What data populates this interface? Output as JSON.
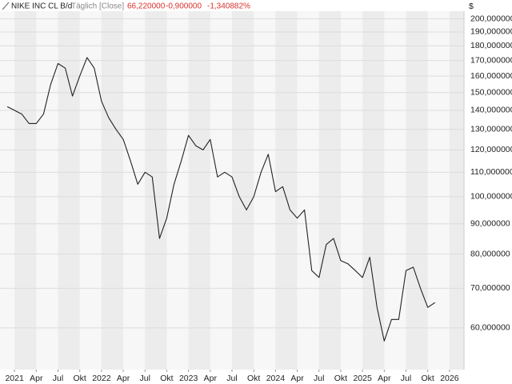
{
  "chart_data": {
    "type": "line",
    "title": "NIKE INC CL B/d",
    "subtitle": "Täglich [Close]",
    "annotations": [
      "66,220000",
      "-0,900000",
      "-1,340882%"
    ],
    "ylabel": "$",
    "log_scale": true,
    "grid": true,
    "xlim": [
      "2020-11",
      "2026-03"
    ],
    "ylim": [
      51,
      206
    ],
    "xticks": [
      {
        "value": "2021-01",
        "label": "2021"
      },
      {
        "value": "2021-04",
        "label": "Apr"
      },
      {
        "value": "2021-07",
        "label": "Jul"
      },
      {
        "value": "2021-10",
        "label": "Okt"
      },
      {
        "value": "2022-01",
        "label": "2022"
      },
      {
        "value": "2022-04",
        "label": "Apr"
      },
      {
        "value": "2022-07",
        "label": "Jul"
      },
      {
        "value": "2022-10",
        "label": "Okt"
      },
      {
        "value": "2023-01",
        "label": "2023"
      },
      {
        "value": "2023-04",
        "label": "Apr"
      },
      {
        "value": "2023-07",
        "label": "Jul"
      },
      {
        "value": "2023-10",
        "label": "Okt"
      },
      {
        "value": "2024-01",
        "label": "2024"
      },
      {
        "value": "2024-04",
        "label": "Apr"
      },
      {
        "value": "2024-07",
        "label": "Jul"
      },
      {
        "value": "2024-10",
        "label": "Okt"
      },
      {
        "value": "2025-01",
        "label": "2025"
      },
      {
        "value": "2025-04",
        "label": "Apr"
      },
      {
        "value": "2025-07",
        "label": "Jul"
      },
      {
        "value": "2025-10",
        "label": "Okt"
      },
      {
        "value": "2026-01",
        "label": "2026"
      }
    ],
    "yticks": [
      {
        "value": 60,
        "label": "60,000000"
      },
      {
        "value": 70,
        "label": "70,000000"
      },
      {
        "value": 80,
        "label": "80,000000"
      },
      {
        "value": 90,
        "label": "90,000000"
      },
      {
        "value": 100,
        "label": "100,000000"
      },
      {
        "value": 110,
        "label": "110,000000"
      },
      {
        "value": 120,
        "label": "120,000000"
      },
      {
        "value": 130,
        "label": "130,000000"
      },
      {
        "value": 140,
        "label": "140,000000"
      },
      {
        "value": 150,
        "label": "150,000000"
      },
      {
        "value": 160,
        "label": "160,000000"
      },
      {
        "value": 170,
        "label": "170,000000"
      },
      {
        "value": 180,
        "label": "180,000000"
      },
      {
        "value": 190,
        "label": "190,000000"
      },
      {
        "value": 200,
        "label": "200,000000"
      }
    ],
    "x": [
      "2020-12",
      "2021-01",
      "2021-02",
      "2021-03",
      "2021-04",
      "2021-05",
      "2021-06",
      "2021-07",
      "2021-08",
      "2021-09",
      "2021-10",
      "2021-11",
      "2021-12",
      "2022-01",
      "2022-02",
      "2022-03",
      "2022-04",
      "2022-05",
      "2022-06",
      "2022-07",
      "2022-08",
      "2022-09",
      "2022-10",
      "2022-11",
      "2022-12",
      "2023-01",
      "2023-02",
      "2023-03",
      "2023-04",
      "2023-05",
      "2023-06",
      "2023-07",
      "2023-08",
      "2023-09",
      "2023-10",
      "2023-11",
      "2023-12",
      "2024-01",
      "2024-02",
      "2024-03",
      "2024-04",
      "2024-05",
      "2024-06",
      "2024-07",
      "2024-08",
      "2024-09",
      "2024-10",
      "2024-11",
      "2024-12",
      "2025-01",
      "2025-02",
      "2025-03",
      "2025-04",
      "2025-05",
      "2025-06",
      "2025-07",
      "2025-08",
      "2025-09",
      "2025-10",
      "2025-11"
    ],
    "series": [
      {
        "name": "NIKE INC CL B",
        "color": "#222222",
        "values": [
          142,
          140,
          138,
          133,
          133,
          138,
          155,
          168,
          165,
          148,
          160,
          172,
          165,
          145,
          136,
          130,
          125,
          115,
          105,
          110,
          108,
          85,
          92,
          105,
          115,
          127,
          122,
          120,
          125,
          108,
          110,
          108,
          100,
          95,
          100,
          110,
          118,
          102,
          104,
          95,
          92,
          95,
          75,
          73,
          83,
          85,
          78,
          77,
          75,
          73,
          79,
          65,
          57,
          62,
          62,
          75,
          76,
          70,
          65,
          66.22
        ]
      }
    ]
  }
}
